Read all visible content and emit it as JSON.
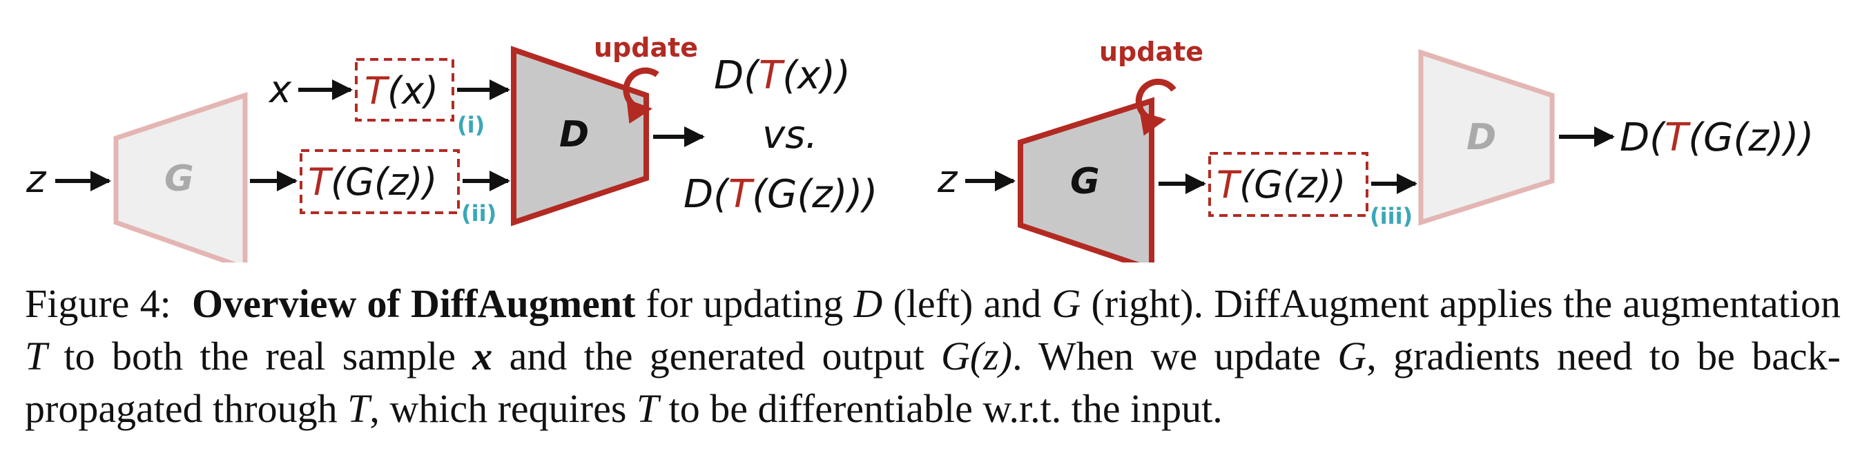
{
  "diagram": {
    "left": {
      "input_x": "x",
      "input_z": "z",
      "aug_x_open": "T",
      "aug_x_rest": "(x)",
      "aug_gz_open": "T",
      "aug_gz_rest": "(G(z))",
      "gen_label": "G",
      "disc_label": "D",
      "update_label": "update",
      "tag_i": "(i)",
      "tag_ii": "(ii)",
      "out1_a": "D(",
      "out1_t": "T",
      "out1_b": "(x))",
      "vs": "vs.",
      "out2_a": "D(",
      "out2_t": "T",
      "out2_b": "(G(z)))"
    },
    "right": {
      "input_z": "z",
      "gen_label": "G",
      "disc_label": "D",
      "update_label": "update",
      "aug_open": "T",
      "aug_rest": "(G(z))",
      "tag_iii": "(iii)",
      "out_a": "D(",
      "out_t": "T",
      "out_b": "(G(z)))"
    },
    "colors": {
      "accent_red": "#b22a22",
      "faded_red": "#e3b5b3",
      "gray_fill": "#c8c8c8",
      "faded_fill": "#efefef",
      "tag_teal": "#3aa7b8"
    }
  },
  "caption": {
    "figure_label": "Figure 4:",
    "title_bold": "Overview of DiffAugment",
    "s1": " for updating ",
    "sym_D": "D",
    "s2": " (left) and ",
    "sym_G": "G",
    "s3": " (right).  DiffAugment applies the augmentation ",
    "sym_T1": "T",
    "s4": " to both the real sample ",
    "sym_x": "x",
    "s5": " and the generated output ",
    "sym_Gz": "G(z)",
    "s6": ". When we update ",
    "sym_G2": "G",
    "s7": ", gradients need to be back-propagated through ",
    "sym_T2": "T",
    "s8": ", which requires ",
    "sym_T3": "T",
    "s9": " to be differentiable w.r.t. the input."
  }
}
